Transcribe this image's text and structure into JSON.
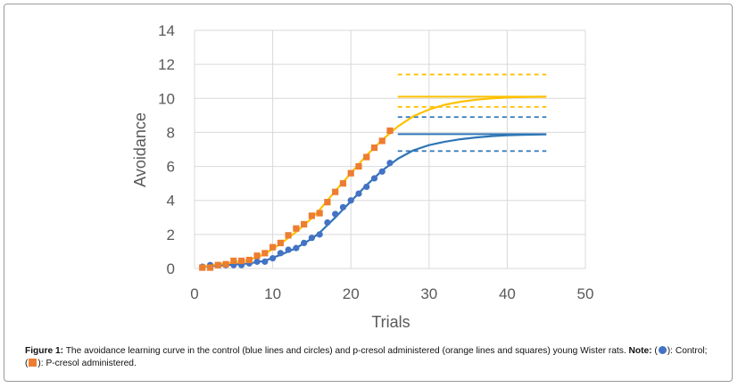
{
  "chart_data": {
    "type": "line",
    "title": "",
    "xlabel": "Trials",
    "ylabel": "Avoidance",
    "xlim": [
      0,
      50
    ],
    "ylim": [
      0,
      14
    ],
    "xticks": [
      "0",
      "10",
      "20",
      "30",
      "40",
      "50"
    ],
    "yticks": [
      "0",
      "2",
      "4",
      "6",
      "8",
      "10",
      "12",
      "14"
    ],
    "grid": true,
    "series": [
      {
        "key": "control",
        "color": "#4472C4",
        "curve_color": "#2E75B6",
        "marker": "circle",
        "points": [
          [
            1,
            0.1
          ],
          [
            2,
            0.2
          ],
          [
            3,
            0.2
          ],
          [
            4,
            0.2
          ],
          [
            5,
            0.2
          ],
          [
            6,
            0.2
          ],
          [
            7,
            0.3
          ],
          [
            8,
            0.4
          ],
          [
            9,
            0.4
          ],
          [
            10,
            0.6
          ],
          [
            11,
            0.9
          ],
          [
            12,
            1.1
          ],
          [
            13,
            1.2
          ],
          [
            14,
            1.5
          ],
          [
            15,
            1.8
          ],
          [
            16,
            2.0
          ],
          [
            17,
            2.7
          ],
          [
            18,
            3.2
          ],
          [
            19,
            3.6
          ],
          [
            20,
            4.0
          ],
          [
            21,
            4.4
          ],
          [
            22,
            4.8
          ],
          [
            23,
            5.3
          ],
          [
            24,
            5.7
          ],
          [
            25,
            6.2
          ]
        ],
        "curve": [
          [
            1,
            0.1
          ],
          [
            4,
            0.2
          ],
          [
            7,
            0.3
          ],
          [
            9,
            0.45
          ],
          [
            11,
            0.8
          ],
          [
            13,
            1.2
          ],
          [
            15,
            1.75
          ],
          [
            16,
            2.1
          ],
          [
            18,
            3.0
          ],
          [
            20,
            3.95
          ],
          [
            22,
            4.9
          ],
          [
            24,
            5.75
          ],
          [
            26,
            6.45
          ],
          [
            28,
            6.95
          ],
          [
            30,
            7.25
          ],
          [
            32,
            7.45
          ],
          [
            34,
            7.6
          ],
          [
            36,
            7.7
          ],
          [
            38,
            7.78
          ],
          [
            40,
            7.83
          ],
          [
            42,
            7.86
          ],
          [
            45,
            7.88
          ]
        ],
        "bands": [
          {
            "y": 7.9,
            "style": "solid",
            "x": [
              26,
              45
            ]
          },
          {
            "y": 8.9,
            "style": "dashed",
            "x": [
              26,
              45
            ]
          },
          {
            "y": 6.9,
            "style": "dashed",
            "x": [
              26,
              45
            ]
          }
        ]
      },
      {
        "key": "pcresol",
        "color": "#ED7D31",
        "curve_color": "#FFC000",
        "marker": "square",
        "points": [
          [
            1,
            0.05
          ],
          [
            2,
            0.05
          ],
          [
            3,
            0.2
          ],
          [
            4,
            0.25
          ],
          [
            5,
            0.45
          ],
          [
            6,
            0.45
          ],
          [
            7,
            0.5
          ],
          [
            8,
            0.75
          ],
          [
            9,
            0.9
          ],
          [
            10,
            1.25
          ],
          [
            11,
            1.5
          ],
          [
            12,
            1.95
          ],
          [
            13,
            2.35
          ],
          [
            14,
            2.6
          ],
          [
            15,
            3.1
          ],
          [
            16,
            3.25
          ],
          [
            17,
            3.9
          ],
          [
            18,
            4.5
          ],
          [
            19,
            5.0
          ],
          [
            20,
            5.6
          ],
          [
            21,
            6.0
          ],
          [
            22,
            6.55
          ],
          [
            23,
            7.1
          ],
          [
            24,
            7.5
          ],
          [
            25,
            8.1
          ]
        ],
        "curve": [
          [
            1,
            0.1
          ],
          [
            3,
            0.25
          ],
          [
            5,
            0.35
          ],
          [
            7,
            0.5
          ],
          [
            9,
            0.85
          ],
          [
            11,
            1.45
          ],
          [
            13,
            2.15
          ],
          [
            15,
            2.95
          ],
          [
            16,
            3.45
          ],
          [
            18,
            4.55
          ],
          [
            20,
            5.6
          ],
          [
            22,
            6.65
          ],
          [
            24,
            7.55
          ],
          [
            26,
            8.35
          ],
          [
            28,
            8.95
          ],
          [
            30,
            9.35
          ],
          [
            32,
            9.62
          ],
          [
            34,
            9.8
          ],
          [
            36,
            9.92
          ],
          [
            38,
            10.0
          ],
          [
            40,
            10.05
          ],
          [
            42,
            10.08
          ],
          [
            45,
            10.1
          ]
        ],
        "bands": [
          {
            "y": 10.1,
            "style": "solid",
            "x": [
              26,
              45
            ]
          },
          {
            "y": 11.4,
            "style": "dashed",
            "x": [
              26,
              45
            ]
          },
          {
            "y": 9.5,
            "style": "dashed",
            "x": [
              26,
              45
            ]
          }
        ]
      }
    ]
  },
  "caption": {
    "label": "Figure 1:",
    "text": "The avoidance learning curve in the control (blue lines and circles) and p-cresol administered (orange lines and squares) young Wister rats.",
    "note_label": "Note:",
    "open_paren": " (",
    "control_key": "): Control; (",
    "pcresol_key": "): P-cresol administered."
  }
}
